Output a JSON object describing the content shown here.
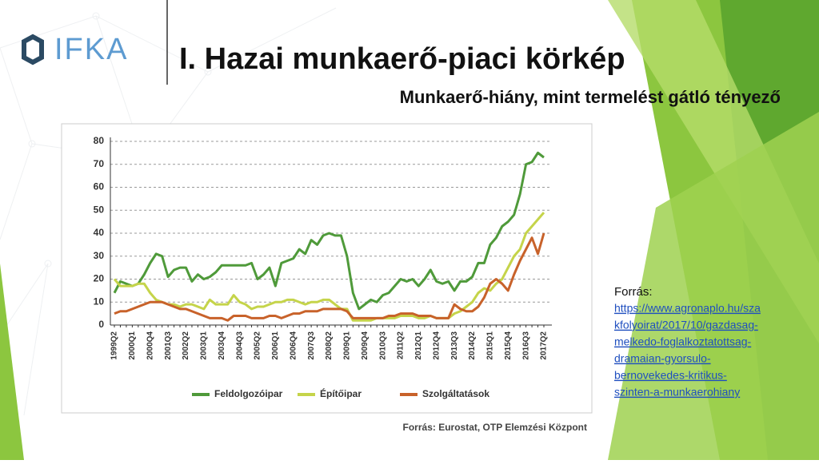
{
  "slide": {
    "logo": "IFKA",
    "title": "I. Hazai munkaerő-piaci körkép",
    "subtitle": "Munkaerő-hiány, mint termelést gátló tényező",
    "reference": {
      "label": "Forrás:",
      "link_lines": [
        "https://www.agronaplo.hu/sza",
        "kfolyoirat/2017/10/gazdasag-",
        "melkedo-foglalkoztatottsag-",
        "dramaian-gyorsulo-",
        "bernovekedes-kritikus-",
        "szinten-a-munkaerohiany"
      ]
    }
  },
  "chart_data": {
    "type": "line",
    "source": "Forrás: Eurostat, OTP Elemzési Központ",
    "categories": [
      "1999Q2",
      null,
      null,
      "2000Q1",
      null,
      null,
      "2000Q4",
      null,
      null,
      "2001Q3",
      null,
      null,
      "2002Q2",
      null,
      null,
      "2003Q1",
      null,
      null,
      "2003Q4",
      null,
      null,
      "2004Q3",
      null,
      null,
      "2005Q2",
      null,
      null,
      "2006Q1",
      null,
      null,
      "2006Q4",
      null,
      null,
      "2007Q3",
      null,
      null,
      "2008Q2",
      null,
      null,
      "2009Q1",
      null,
      null,
      "2009Q4",
      null,
      null,
      "2010Q3",
      null,
      null,
      "2011Q2",
      null,
      null,
      "2012Q1",
      null,
      null,
      "2012Q4",
      null,
      null,
      "2013Q3",
      null,
      null,
      "2014Q2",
      null,
      null,
      "2015Q1",
      null,
      null,
      "2015Q4",
      null,
      null,
      "2016Q3",
      null,
      null,
      "2017Q2"
    ],
    "series": [
      {
        "name": "Feldolgozóipar",
        "color": "#4f9a3a",
        "values": [
          14,
          19,
          18,
          17,
          18,
          22,
          27,
          31,
          30,
          21,
          24,
          25,
          25,
          19,
          22,
          20,
          21,
          23,
          26,
          26,
          26,
          26,
          26,
          27,
          20,
          22,
          25,
          17,
          27,
          28,
          29,
          33,
          31,
          37,
          35,
          39,
          40,
          39,
          39,
          30,
          14,
          7,
          9,
          11,
          10,
          13,
          14,
          17,
          20,
          19,
          20,
          17,
          20,
          24,
          19,
          18,
          19,
          15,
          19,
          19,
          21,
          27,
          27,
          35,
          38,
          43,
          45,
          48,
          57,
          70,
          71,
          75,
          73
        ]
      },
      {
        "name": "Építőipar",
        "color": "#c5d44a",
        "values": [
          20,
          17,
          17,
          17,
          18,
          18,
          14,
          11,
          10,
          9,
          9,
          8,
          9,
          9,
          8,
          7,
          11,
          9,
          9,
          9,
          13,
          10,
          9,
          7,
          8,
          8,
          9,
          10,
          10,
          11,
          11,
          10,
          9,
          10,
          10,
          11,
          11,
          9,
          7,
          7,
          2,
          2,
          2,
          2,
          3,
          3,
          3,
          3,
          4,
          4,
          4,
          3,
          3,
          4,
          3,
          3,
          3,
          5,
          6,
          8,
          10,
          14,
          16,
          15,
          18,
          20,
          25,
          30,
          33,
          40,
          43,
          46,
          49
        ]
      },
      {
        "name": "Szolgáltatások",
        "color": "#c8622a",
        "values": [
          5,
          6,
          6,
          7,
          8,
          9,
          10,
          10,
          10,
          9,
          8,
          7,
          7,
          6,
          5,
          4,
          3,
          3,
          3,
          2,
          4,
          4,
          4,
          3,
          3,
          3,
          4,
          4,
          3,
          4,
          5,
          5,
          6,
          6,
          6,
          7,
          7,
          7,
          7,
          6,
          3,
          3,
          3,
          3,
          3,
          3,
          4,
          4,
          5,
          5,
          5,
          4,
          4,
          4,
          3,
          3,
          3,
          9,
          7,
          6,
          6,
          8,
          12,
          18,
          20,
          18,
          15,
          22,
          28,
          33,
          38,
          31,
          40
        ]
      }
    ],
    "ylim": [
      0,
      80
    ],
    "yticks": [
      0,
      10,
      20,
      30,
      40,
      50,
      60,
      70,
      80
    ],
    "grid": true,
    "legend": "bottom"
  }
}
